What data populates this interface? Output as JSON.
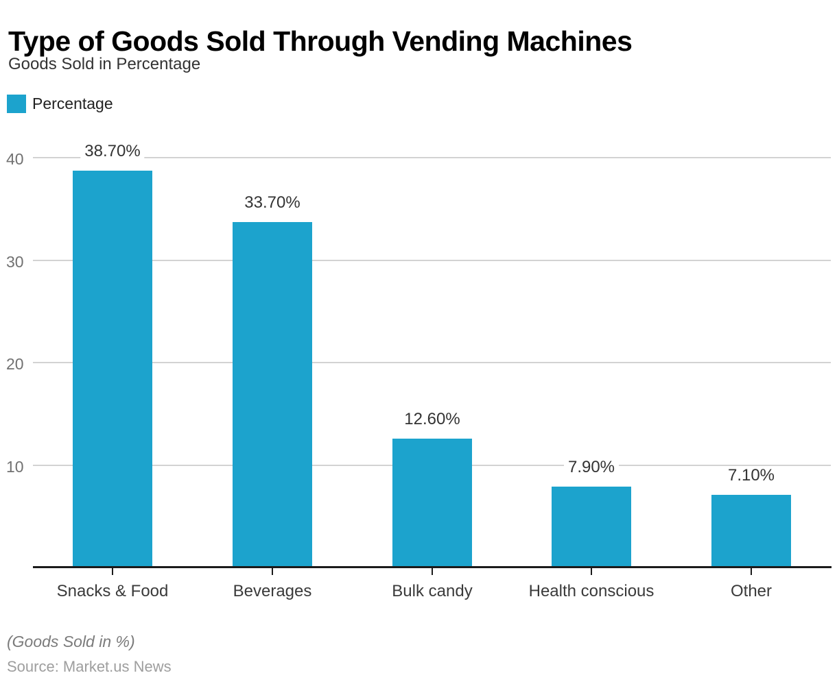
{
  "header": {
    "title": "Type of Goods Sold Through Vending Machines",
    "subtitle": "Goods Sold in Percentage"
  },
  "legend": {
    "label": "Percentage",
    "swatch_color": "#1CA3CD"
  },
  "chart_data": {
    "type": "bar",
    "title": "Type of Goods Sold Through Vending Machines",
    "subtitle": "Goods Sold in Percentage",
    "categories": [
      "Snacks & Food",
      "Beverages",
      "Bulk candy",
      "Health conscious",
      "Other"
    ],
    "series": [
      {
        "name": "Percentage",
        "values": [
          38.7,
          33.7,
          12.6,
          7.9,
          7.1
        ]
      }
    ],
    "value_labels": [
      "38.70%",
      "33.70%",
      "12.60%",
      "7.90%",
      "7.10%"
    ],
    "xlabel": "",
    "ylabel": "",
    "ylim": [
      0,
      40
    ],
    "y_ticks": [
      40,
      30,
      20,
      10
    ],
    "grid": true,
    "legend_position": "top-left",
    "bar_color": "#1CA3CD",
    "grid_color": "#D2D2D2",
    "axis_color": "#1A1A1A"
  },
  "footer": {
    "note": "(Goods Sold in %)",
    "source": "Source: Market.us News"
  }
}
